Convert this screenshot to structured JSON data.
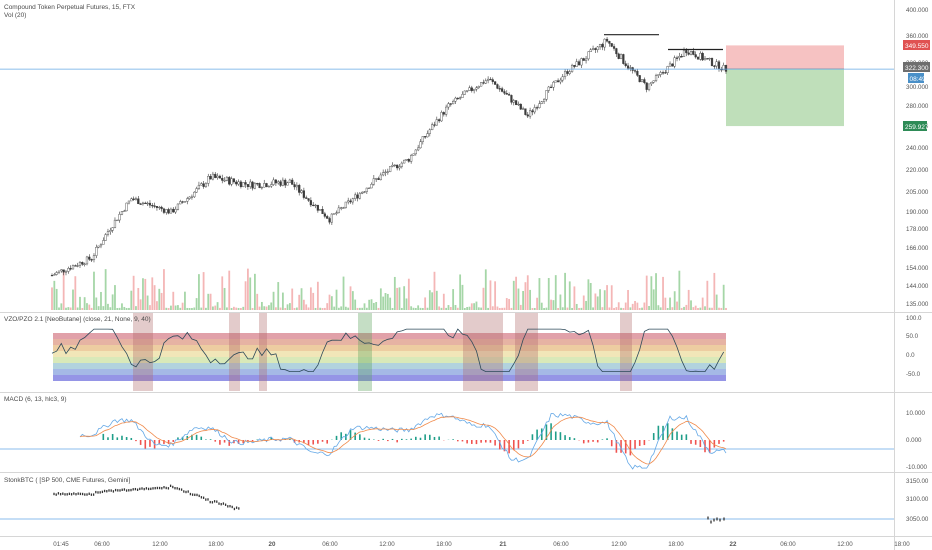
{
  "colors": {
    "up": "#1f9e89",
    "down": "#ef5350",
    "candle": "#3b3b3b",
    "vol_up": "#a5d6a7",
    "vol_down": "#f4b6b6",
    "blue_line": "#64a8e6",
    "orange_line": "#f08a4b",
    "risk": "#f4b7b7",
    "reward": "#b8dcb2",
    "tag_red": "#e05252",
    "tag_blue": "#4a90c8",
    "tag_green": "#2e8b57"
  },
  "main": {
    "title": "Compound Token Perpetual Futures, 15, FTX",
    "volume_label": "Vol (20)",
    "price_axis": [
      "400.000",
      "360.000",
      "330.000",
      "300.000",
      "280.000",
      "260.000",
      "240.000",
      "220.000",
      "205.000",
      "190.000",
      "178.000",
      "166.000",
      "154.000",
      "144.000",
      "135.000"
    ],
    "stop_tag": "349.550",
    "entry_tag": "322.300",
    "countdown_tag": "08:49",
    "target_tag": "259.927"
  },
  "vzo": {
    "label": "VZO/PZO 2.1 [NeoButane] (close, 21, None, 9, 40)",
    "axis": [
      "100.0",
      "50.0",
      "0.0",
      "-50.0"
    ]
  },
  "macd": {
    "label": "MACD (6, 13, hlc3, 9)",
    "axis": [
      "10.000",
      "0.000",
      "-10.000"
    ]
  },
  "stonk": {
    "label": "StonkBTC (  [SP 500, CME Futures, Gemini]",
    "axis": [
      "3150.00",
      "3100.00",
      "3050.00"
    ]
  },
  "time_axis": [
    "01:45",
    "06:00",
    "12:00",
    "18:00",
    "20",
    "06:00",
    "12:00",
    "18:00",
    "21",
    "06:00",
    "12:00",
    "18:00",
    "22",
    "06:00",
    "12:00",
    "18:00"
  ],
  "chart_data": {
    "type": "candlestick",
    "title": "Compound Token Perpetual Futures, 15, FTX",
    "ylim": [
      135,
      400
    ],
    "approx_close_path": [
      {
        "t": "01:45",
        "price": 150
      },
      {
        "t": "06:00",
        "price": 160
      },
      {
        "t": "09:00",
        "price": 200
      },
      {
        "t": "12:00",
        "price": 190
      },
      {
        "t": "15:00",
        "price": 215
      },
      {
        "t": "18:00",
        "price": 210
      },
      {
        "t": "20 00:00",
        "price": 212
      },
      {
        "t": "20 09:00",
        "price": 185
      },
      {
        "t": "20 15:00",
        "price": 210
      },
      {
        "t": "20 18:00",
        "price": 230
      },
      {
        "t": "21 00:00",
        "price": 280
      },
      {
        "t": "21 03:00",
        "price": 310
      },
      {
        "t": "21 06:00",
        "price": 270
      },
      {
        "t": "21 09:00",
        "price": 320
      },
      {
        "t": "21 13:00",
        "price": 355
      },
      {
        "t": "21 16:00",
        "price": 300
      },
      {
        "t": "21 19:00",
        "price": 345
      },
      {
        "t": "22 00:00",
        "price": 322
      }
    ],
    "position": {
      "stop": 349.55,
      "entry": 322.3,
      "target": 259.927
    },
    "resistance_levels": [
      362,
      345
    ]
  }
}
